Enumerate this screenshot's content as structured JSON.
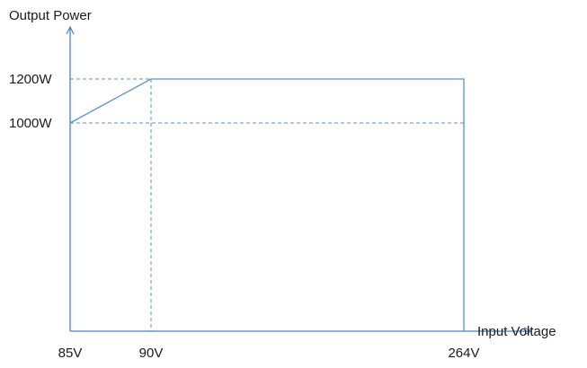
{
  "chart_data": {
    "type": "line",
    "title": "",
    "xlabel": "Input Voltage",
    "ylabel": "Output Power",
    "x_ticks": [
      {
        "value": 85,
        "label": "85V"
      },
      {
        "value": 90,
        "label": "90V"
      },
      {
        "value": 264,
        "label": "264V"
      }
    ],
    "y_ticks": [
      {
        "value": 1000,
        "label": "1000W"
      },
      {
        "value": 1200,
        "label": "1200W"
      }
    ],
    "series": [
      {
        "x": [
          85,
          90,
          264,
          264
        ],
        "y": [
          1000,
          1200,
          1200,
          0
        ]
      }
    ],
    "xlim": [
      85,
      264
    ],
    "ylim": [
      0,
      1200
    ],
    "grid": false,
    "reference_lines": "dashed",
    "colors": {
      "axis": "#4a7fc4",
      "series": "#5b8fd0",
      "reference": "#5b8fd0",
      "text": "#1a1a1a"
    }
  }
}
